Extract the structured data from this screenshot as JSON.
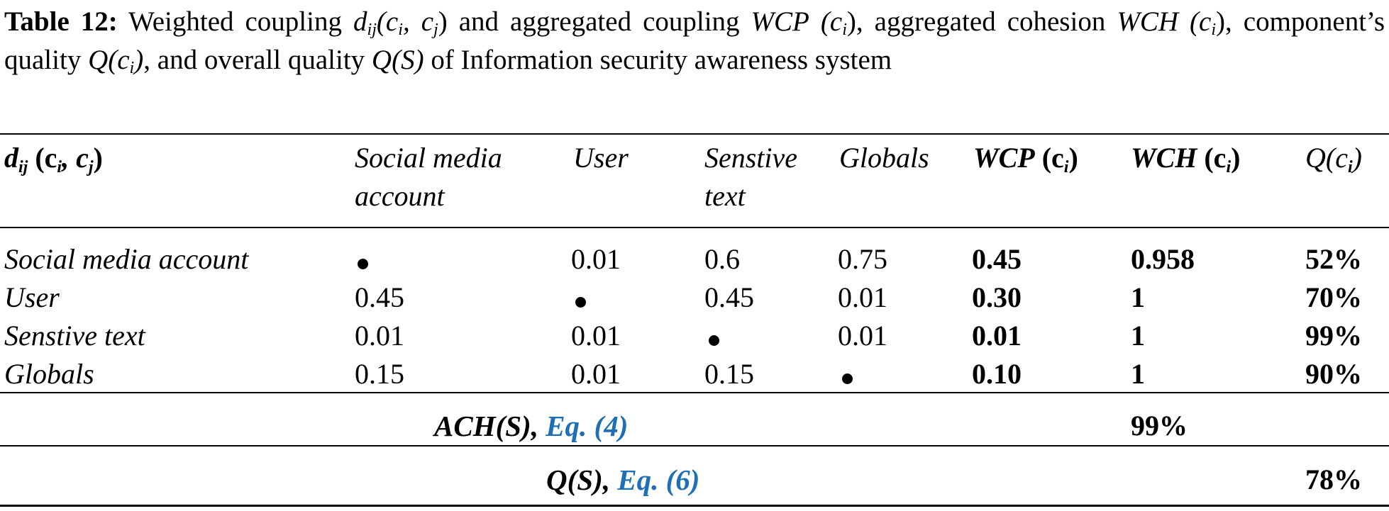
{
  "caption": {
    "label": "Table 12:",
    "text_1": "Weighted coupling",
    "dij": "d",
    "dij_sub": "ij",
    "dij_args": "(c",
    "dij_args_sub_i": "i",
    "dij_args_mid": ", c",
    "dij_args_sub_j": "j",
    "dij_args_end": ")",
    "text_2": "and aggregated coupling",
    "wcp": "WCP",
    "wcp_args": "(c",
    "wcp_sub": "i",
    "wcp_end": ")",
    "text_3": ", aggregated cohesion",
    "wch": "WCH",
    "wch_args": "(c",
    "wch_sub": "i",
    "wch_end": ")",
    "text_4": ", component’s quality",
    "q": "Q(c",
    "q_sub": "i",
    "q_end": ")",
    "text_5": ", and overall quality",
    "qs": "Q(S)",
    "text_6": "of Information security awareness system"
  },
  "table": {
    "header": {
      "corner": "d",
      "corner_sub": "ij",
      "corner_args_open": " (c",
      "corner_args_sub_i": "i",
      "corner_args_mid": ", c",
      "corner_args_sub_j": "j",
      "corner_args_close": ")",
      "col_social": "Social media account",
      "col_user": "User",
      "col_sensitive": "Senstive text",
      "col_globals": "Globals",
      "col_wcp": "WCP",
      "col_wcp_args": " (c",
      "col_wcp_sub": "i",
      "col_wcp_close": ")",
      "col_wch": "WCH",
      "col_wch_args": " (c",
      "col_wch_sub": "i",
      "col_wch_close": ")",
      "col_q": "Q(c",
      "col_q_sub": "i",
      "col_q_close": ")"
    },
    "rows": [
      {
        "name": "Social media account",
        "social": "",
        "user": "0.01",
        "sensitive": "0.6",
        "globals": "0.75",
        "wcp": "0.45",
        "wch": "0.958",
        "q": "52%"
      },
      {
        "name": "User",
        "social": "0.45",
        "user": "",
        "sensitive": "0.45",
        "globals": "0.01",
        "wcp": "0.30",
        "wch": "1",
        "q": "70%"
      },
      {
        "name": "Senstive text",
        "social": "0.01",
        "user": "0.01",
        "sensitive": "",
        "globals": "0.01",
        "wcp": "0.01",
        "wch": "1",
        "q": "99%"
      },
      {
        "name": "Globals",
        "social": "0.15",
        "user": "0.01",
        "sensitive": "0.15",
        "globals": "",
        "wcp": "0.10",
        "wch": "1",
        "q": "90%"
      }
    ],
    "ach": {
      "label": "ACH(S),",
      "eq": "Eq. (4)",
      "value": "99%"
    },
    "qs": {
      "label": "Q(S),",
      "eq": "Eq. (6)",
      "value": "78%"
    }
  },
  "colors": {
    "link": "#1f6fb5"
  }
}
